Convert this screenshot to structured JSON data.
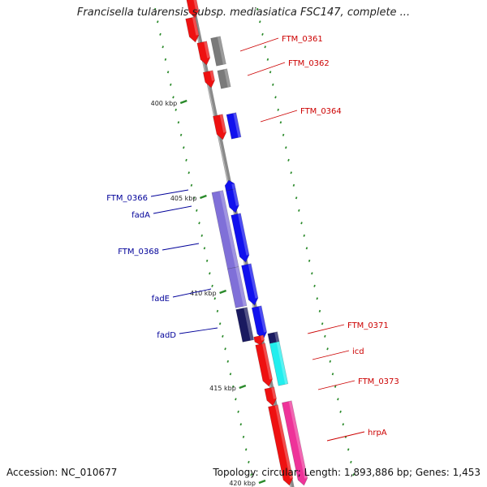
{
  "title": "Francisella tularensis subsp. mediasiatica FSC147, complete ...",
  "accession": "Accession: NC_010677",
  "summary": "Topology: circular; Length: 1,893,886 bp; Genes: 1,453",
  "colors": {
    "backbone": "#8a8a8a",
    "ruler": "#2a8a2a",
    "cds": "#ee1111",
    "cds_other": "#7a7a7a",
    "cds_blue": "#1111ee",
    "cds_violet": "#8070d8",
    "cds_cyan": "#22eeee",
    "cds_pink": "#ee3399",
    "cds_navy": "#1a1a60",
    "label_red": "#cc0000",
    "label_blue": "#000099"
  },
  "ruler": {
    "ticks": [
      "400 kbp",
      "405 kbp",
      "410 kbp",
      "415 kbp",
      "420 kbp"
    ]
  },
  "labels": [
    {
      "text": "FTM_0361",
      "side": "right",
      "color": "red"
    },
    {
      "text": "FTM_0362",
      "side": "right",
      "color": "red"
    },
    {
      "text": "FTM_0364",
      "side": "right",
      "color": "red"
    },
    {
      "text": "FTM_0366",
      "side": "left",
      "color": "blue"
    },
    {
      "text": "fadA",
      "side": "left",
      "color": "blue"
    },
    {
      "text": "FTM_0368",
      "side": "left",
      "color": "blue"
    },
    {
      "text": "fadE",
      "side": "left",
      "color": "blue"
    },
    {
      "text": "fadD",
      "side": "left",
      "color": "blue"
    },
    {
      "text": "FTM_0371",
      "side": "right",
      "color": "red"
    },
    {
      "text": "icd",
      "side": "right",
      "color": "red"
    },
    {
      "text": "FTM_0373",
      "side": "right",
      "color": "red"
    },
    {
      "text": "hrpA",
      "side": "right",
      "color": "red"
    }
  ]
}
